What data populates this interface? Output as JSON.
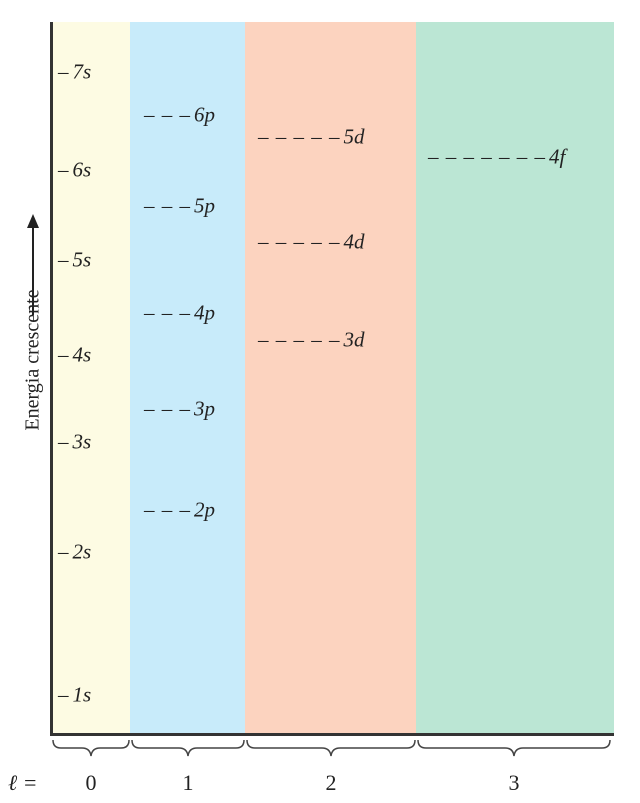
{
  "axis": {
    "y_label": "Energia crescente",
    "l_symbol": "ℓ ="
  },
  "columns": [
    {
      "l": "0",
      "color": "#fdfbe3"
    },
    {
      "l": "1",
      "color": "#c8ebfa"
    },
    {
      "l": "2",
      "color": "#fcd3bf"
    },
    {
      "l": "3",
      "color": "#bbe6d4"
    }
  ],
  "levels": {
    "s": [
      "7s",
      "6s",
      "5s",
      "4s",
      "3s",
      "2s",
      "1s"
    ],
    "p": [
      "6p",
      "5p",
      "4p",
      "3p",
      "2p"
    ],
    "d": [
      "5d",
      "4d",
      "3d"
    ],
    "f": [
      "4f"
    ]
  }
}
